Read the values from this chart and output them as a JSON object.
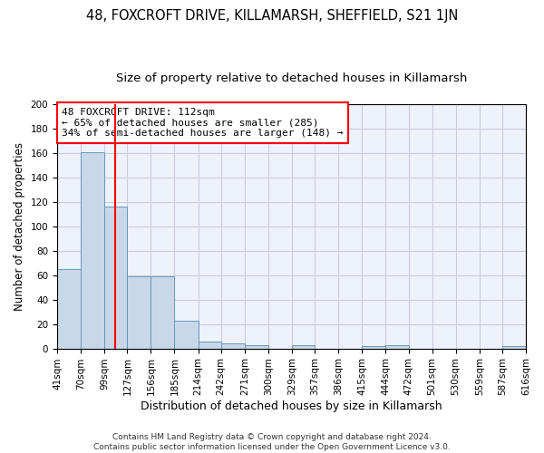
{
  "title": "48, FOXCROFT DRIVE, KILLAMARSH, SHEFFIELD, S21 1JN",
  "subtitle": "Size of property relative to detached houses in Killamarsh",
  "xlabel": "Distribution of detached houses by size in Killamarsh",
  "ylabel": "Number of detached properties",
  "bar_color": "#c8d8e8",
  "bar_edge_color": "#6699bb",
  "grid_color": "#ccccdd",
  "background_color": "#eef2fb",
  "vline_x": 112,
  "vline_color": "red",
  "annotation_line1": "48 FOXCROFT DRIVE: 112sqm",
  "annotation_line2": "← 65% of detached houses are smaller (285)",
  "annotation_line3": "34% of semi-detached houses are larger (148) →",
  "bin_edges": [
    41,
    70,
    99,
    127,
    156,
    185,
    214,
    242,
    271,
    300,
    329,
    357,
    386,
    415,
    444,
    472,
    501,
    530,
    559,
    587,
    616
  ],
  "bar_heights": [
    65,
    161,
    116,
    59,
    59,
    23,
    6,
    4,
    3,
    0,
    3,
    0,
    0,
    2,
    3,
    0,
    0,
    0,
    0,
    2
  ],
  "ylim": [
    0,
    200
  ],
  "yticks": [
    0,
    20,
    40,
    60,
    80,
    100,
    120,
    140,
    160,
    180,
    200
  ],
  "footer_text": "Contains HM Land Registry data © Crown copyright and database right 2024.\nContains public sector information licensed under the Open Government Licence v3.0.",
  "title_fontsize": 10.5,
  "subtitle_fontsize": 9.5,
  "xlabel_fontsize": 9,
  "ylabel_fontsize": 8.5,
  "tick_fontsize": 7.5,
  "annotation_fontsize": 8,
  "footer_fontsize": 6.5
}
